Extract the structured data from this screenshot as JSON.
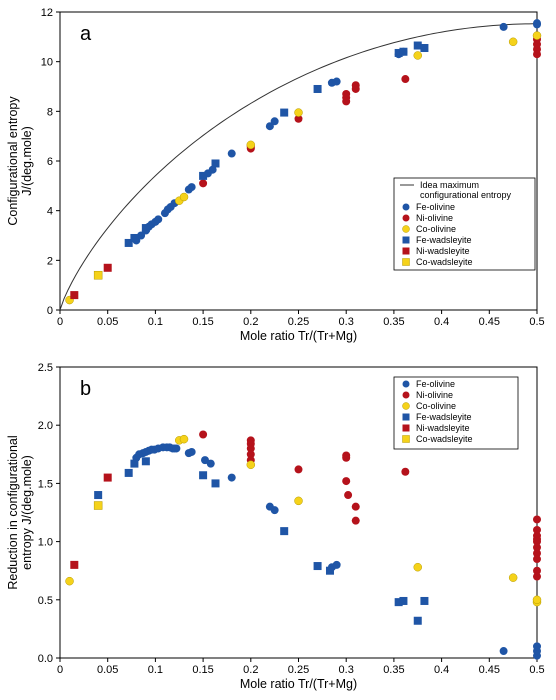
{
  "colors": {
    "fe": "#1f55a6",
    "ni": "#b5121b",
    "co": "#f5d21a",
    "co_stroke": "#b59a00",
    "curve": "#333333"
  },
  "chart_data": [
    {
      "panel_label": "a",
      "type": "scatter",
      "xlabel": "Mole ratio Tr/(Tr+Mg)",
      "ylabel": [
        "Configurational entropy",
        "J/(deg.mole)"
      ],
      "xlim": [
        0,
        0.5
      ],
      "ylim": [
        0,
        12
      ],
      "xticks": [
        0,
        0.05,
        0.1,
        0.15,
        0.2,
        0.25,
        0.3,
        0.35,
        0.4,
        0.45,
        0.5
      ],
      "xtick_labels": [
        "0",
        "0.05",
        "0.1",
        "0.15",
        "0.2",
        "0.25",
        "0.3",
        "0.35",
        "0.4",
        "0.45",
        "0.5"
      ],
      "yticks": [
        0,
        2,
        4,
        6,
        8,
        10,
        12
      ],
      "ytick_labels": [
        "0",
        "2",
        "4",
        "6",
        "8",
        "10",
        "12"
      ],
      "legend_position": "right",
      "legend": [
        {
          "label": "Idea maximum",
          "label2": "configurational entropy",
          "series": "curve"
        },
        {
          "label": "Fe-olivine",
          "series": "fe-olivine"
        },
        {
          "label": "Ni-olivine",
          "series": "ni-olivine"
        },
        {
          "label": "Co-olivine",
          "series": "co-olivine"
        },
        {
          "label": "Fe-wadsleyite",
          "series": "fe-wadsleyite"
        },
        {
          "label": "Ni-wadsleyite",
          "series": "ni-wadsleyite"
        },
        {
          "label": "Co-wadsleyite",
          "series": "co-wadsleyite"
        }
      ],
      "curve": {
        "name": "Idea maximum configurational entropy",
        "formula": "-2R[x ln x + (1-x) ln(1-x)]",
        "x_range": [
          0,
          0.5
        ]
      },
      "series": [
        {
          "key": "fe-olivine",
          "marker": "circle",
          "color": "fe",
          "x": [
            0.08,
            0.085,
            0.09,
            0.093,
            0.096,
            0.1,
            0.103,
            0.11,
            0.113,
            0.116,
            0.12,
            0.135,
            0.138,
            0.155,
            0.16,
            0.18,
            0.22,
            0.225,
            0.285,
            0.29,
            0.355,
            0.36,
            0.465,
            0.5,
            0.5
          ],
          "y": [
            2.8,
            3.0,
            3.2,
            3.35,
            3.45,
            3.55,
            3.65,
            3.9,
            4.05,
            4.15,
            4.3,
            4.85,
            4.95,
            5.5,
            5.65,
            6.3,
            7.4,
            7.6,
            9.15,
            9.2,
            10.3,
            10.4,
            11.4,
            11.5,
            11.55
          ]
        },
        {
          "key": "ni-olivine",
          "marker": "circle",
          "color": "ni",
          "x": [
            0.15,
            0.2,
            0.2,
            0.2,
            0.25,
            0.3,
            0.3,
            0.3,
            0.31,
            0.31,
            0.362,
            0.5,
            0.5,
            0.5,
            0.5
          ],
          "y": [
            5.1,
            6.5,
            6.6,
            6.55,
            7.7,
            8.4,
            8.55,
            8.7,
            8.9,
            9.05,
            9.3,
            10.3,
            10.5,
            10.7,
            10.9
          ]
        },
        {
          "key": "co-olivine",
          "marker": "circle",
          "color": "co",
          "x": [
            0.01,
            0.125,
            0.13,
            0.2,
            0.25,
            0.375,
            0.475,
            0.5
          ],
          "y": [
            0.4,
            4.4,
            4.55,
            6.65,
            7.95,
            10.25,
            10.8,
            11.05
          ]
        },
        {
          "key": "fe-wadsleyite",
          "marker": "square",
          "color": "fe",
          "x": [
            0.072,
            0.078,
            0.09,
            0.15,
            0.163,
            0.235,
            0.27,
            0.355,
            0.36,
            0.375,
            0.382
          ],
          "y": [
            2.7,
            2.9,
            3.3,
            5.4,
            5.9,
            7.95,
            8.9,
            10.35,
            10.4,
            10.65,
            10.55
          ]
        },
        {
          "key": "ni-wadsleyite",
          "marker": "square",
          "color": "ni",
          "x": [
            0.015,
            0.05
          ],
          "y": [
            0.6,
            1.7
          ]
        },
        {
          "key": "co-wadsleyite",
          "marker": "square",
          "color": "co",
          "x": [
            0.04
          ],
          "y": [
            1.4
          ]
        }
      ]
    },
    {
      "panel_label": "b",
      "type": "scatter",
      "xlabel": "Mole ratio Tr/(Tr+Mg)",
      "ylabel": [
        "Reduction in configurational",
        "entropy J/(deg.mole)"
      ],
      "xlim": [
        0,
        0.5
      ],
      "ylim": [
        0,
        2.5
      ],
      "xticks": [
        0,
        0.05,
        0.1,
        0.15,
        0.2,
        0.25,
        0.3,
        0.35,
        0.4,
        0.45,
        0.5
      ],
      "xtick_labels": [
        "0",
        "0.05",
        "0.1",
        "0.15",
        "0.2",
        "0.25",
        "0.3",
        "0.35",
        "0.4",
        "0.45",
        "0.5"
      ],
      "yticks": [
        0,
        0.5,
        1.0,
        1.5,
        2.0,
        2.5
      ],
      "ytick_labels": [
        "0.0",
        "0.5",
        "1.0",
        "1.5",
        "2.0",
        "2.5"
      ],
      "legend_position": "top-right",
      "legend": [
        {
          "label": "Fe-olivine",
          "series": "fe-olivine"
        },
        {
          "label": "Ni-olivine",
          "series": "ni-olivine"
        },
        {
          "label": "Co-olivine",
          "series": "co-olivine"
        },
        {
          "label": "Fe-wadsleyite",
          "series": "fe-wadsleyite"
        },
        {
          "label": "Ni-wadsleyite",
          "series": "ni-wadsleyite"
        },
        {
          "label": "Co-wadsleyite",
          "series": "co-wadsleyite"
        }
      ],
      "series": [
        {
          "key": "fe-olivine",
          "marker": "circle",
          "color": "fe",
          "x": [
            0.08,
            0.083,
            0.087,
            0.09,
            0.093,
            0.096,
            0.099,
            0.103,
            0.108,
            0.112,
            0.115,
            0.118,
            0.12,
            0.122,
            0.135,
            0.138,
            0.152,
            0.158,
            0.18,
            0.22,
            0.225,
            0.285,
            0.29,
            0.465,
            0.5,
            0.5,
            0.5
          ],
          "y": [
            1.72,
            1.75,
            1.76,
            1.77,
            1.78,
            1.79,
            1.79,
            1.8,
            1.81,
            1.81,
            1.81,
            1.8,
            1.8,
            1.8,
            1.76,
            1.77,
            1.7,
            1.67,
            1.55,
            1.3,
            1.27,
            0.78,
            0.8,
            0.06,
            0.02,
            0.06,
            0.1
          ]
        },
        {
          "key": "ni-olivine",
          "marker": "circle",
          "color": "ni",
          "x": [
            0.15,
            0.2,
            0.2,
            0.2,
            0.2,
            0.2,
            0.25,
            0.3,
            0.3,
            0.3,
            0.302,
            0.31,
            0.31,
            0.362,
            0.5,
            0.5,
            0.5,
            0.5,
            0.5,
            0.5,
            0.5,
            0.5,
            0.5,
            0.5
          ],
          "y": [
            1.92,
            1.87,
            1.84,
            1.8,
            1.75,
            1.7,
            1.62,
            1.74,
            1.72,
            1.52,
            1.4,
            1.3,
            1.18,
            1.6,
            1.19,
            1.1,
            1.05,
            1.02,
            1.0,
            0.95,
            0.9,
            0.85,
            0.75,
            0.7
          ]
        },
        {
          "key": "co-olivine",
          "marker": "circle",
          "color": "co",
          "x": [
            0.01,
            0.125,
            0.13,
            0.2,
            0.25,
            0.375,
            0.475,
            0.5,
            0.5
          ],
          "y": [
            0.66,
            1.87,
            1.88,
            1.66,
            1.35,
            0.78,
            0.69,
            0.48,
            0.5
          ]
        },
        {
          "key": "fe-wadsleyite",
          "marker": "square",
          "color": "fe",
          "x": [
            0.04,
            0.072,
            0.078,
            0.09,
            0.15,
            0.163,
            0.235,
            0.27,
            0.283,
            0.355,
            0.36,
            0.375,
            0.382
          ],
          "y": [
            1.4,
            1.59,
            1.67,
            1.69,
            1.57,
            1.5,
            1.09,
            0.79,
            0.75,
            0.48,
            0.49,
            0.32,
            0.49
          ]
        },
        {
          "key": "ni-wadsleyite",
          "marker": "square",
          "color": "ni",
          "x": [
            0.015,
            0.05
          ],
          "y": [
            0.8,
            1.55
          ]
        },
        {
          "key": "co-wadsleyite",
          "marker": "square",
          "color": "co",
          "x": [
            0.04
          ],
          "y": [
            1.31
          ]
        }
      ]
    }
  ]
}
